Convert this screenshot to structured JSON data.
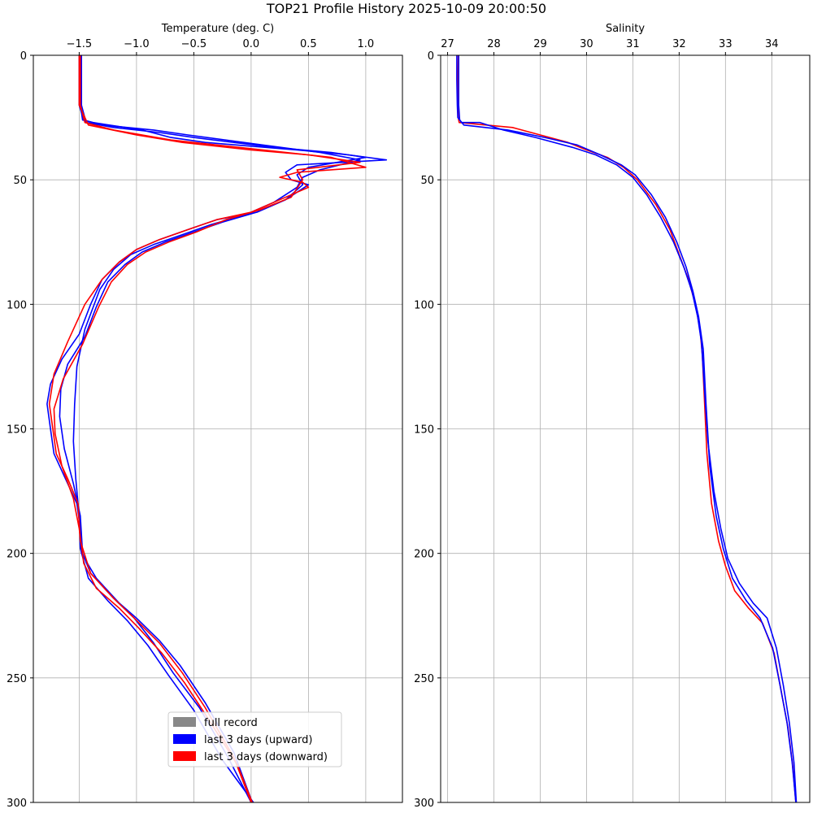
{
  "figure": {
    "title": "TOP21 Profile History 2025-10-09 20:00:50"
  },
  "chart_data": [
    {
      "type": "line",
      "xlabel": "Temperature (deg. C)",
      "ylabel": "",
      "xlim": [
        -1.9,
        1.32
      ],
      "ylim": [
        300,
        0
      ],
      "x_axis_position": "top",
      "y_inverted": true,
      "grid": true,
      "xticks": [
        -1.5,
        -1.0,
        -0.5,
        0.0,
        0.5,
        1.0
      ],
      "xtick_labels": [
        "−1.5",
        "−1.0",
        "−0.5",
        "0.0",
        "0.5",
        "1.0"
      ],
      "yticks": [
        0,
        50,
        100,
        150,
        200,
        250,
        300
      ],
      "ytick_labels": [
        "0",
        "50",
        "100",
        "150",
        "200",
        "250",
        "300"
      ],
      "legend": {
        "placement": "lower-center",
        "entries": [
          {
            "label": "full record",
            "color": "#888888"
          },
          {
            "label": "last 3 days (upward)",
            "color": "#0000ff"
          },
          {
            "label": "last 3 days (downward)",
            "color": "#ff0000"
          }
        ]
      },
      "series": [
        {
          "color": "#0000ff",
          "x": [
            -1.49,
            -1.49,
            -1.49,
            -1.47,
            -1.38,
            -0.95,
            -0.7,
            -0.4,
            0.4,
            0.85,
            1.18,
            0.4,
            0.3,
            0.35,
            0.5,
            0.3,
            0.05,
            -0.3,
            -0.55,
            -0.8,
            -1.0,
            -1.15,
            -1.3,
            -1.4,
            -1.5,
            -1.65,
            -1.75,
            -1.78,
            -1.75,
            -1.72,
            -1.62,
            -1.52,
            -1.49,
            -1.48,
            -1.35,
            -1.15,
            -1.0,
            -0.8,
            -0.62,
            -0.4,
            -0.15,
            0.01
          ],
          "y": [
            0,
            10,
            20,
            26,
            27,
            30,
            33,
            35,
            38,
            40,
            42,
            44,
            47,
            50,
            52,
            58,
            63,
            66,
            70,
            74,
            78,
            83,
            90,
            100,
            112,
            122,
            132,
            140,
            150,
            160,
            170,
            180,
            190,
            200,
            210,
            220,
            226,
            235,
            245,
            260,
            280,
            300
          ]
        },
        {
          "color": "#0000ff",
          "x": [
            -1.48,
            -1.48,
            -1.48,
            -1.44,
            -1.2,
            -0.8,
            -0.5,
            0.2,
            0.7,
            1.0,
            0.5,
            0.4,
            0.45,
            0.3,
            0.05,
            -0.25,
            -0.5,
            -0.75,
            -0.95,
            -1.1,
            -1.25,
            -1.35,
            -1.45,
            -1.6,
            -1.66,
            -1.67,
            -1.63,
            -1.55,
            -1.49,
            -1.47,
            -1.4,
            -1.2,
            -1.02,
            -0.85,
            -0.68,
            -0.45,
            -0.2,
            0.0
          ],
          "y": [
            0,
            10,
            20,
            27,
            29,
            31,
            33,
            37,
            39,
            41,
            45,
            48,
            52,
            58,
            63,
            67,
            71,
            75,
            79,
            84,
            91,
            101,
            113,
            124,
            134,
            145,
            158,
            172,
            185,
            200,
            208,
            218,
            226,
            236,
            248,
            262,
            282,
            300
          ]
        },
        {
          "color": "#0000ff",
          "x": [
            -1.5,
            -1.5,
            -1.5,
            -1.46,
            -1.3,
            -0.85,
            -0.55,
            0.1,
            0.6,
            0.95,
            0.6,
            0.45,
            0.4,
            0.2,
            -0.05,
            -0.35,
            -0.6,
            -0.85,
            -1.05,
            -1.2,
            -1.32,
            -1.45,
            -1.52,
            -1.54,
            -1.55,
            -1.53,
            -1.5,
            -1.49,
            -1.42,
            -1.25,
            -1.08,
            -0.9,
            -0.72,
            -0.5,
            -0.25,
            0.02
          ],
          "y": [
            0,
            10,
            20,
            26,
            28,
            30,
            32,
            36,
            39,
            42,
            46,
            49,
            53,
            59,
            64,
            68,
            72,
            76,
            80,
            86,
            94,
            110,
            125,
            140,
            155,
            170,
            185,
            198,
            210,
            219,
            227,
            237,
            249,
            263,
            283,
            300
          ]
        },
        {
          "color": "#ff0000",
          "x": [
            -1.49,
            -1.49,
            -1.49,
            -1.45,
            -1.2,
            -0.95,
            -0.7,
            -0.3,
            0.1,
            0.7,
            1.0,
            0.4,
            0.25,
            0.45,
            0.5,
            0.25,
            0.0,
            -0.3,
            -0.55,
            -0.8,
            -1.0,
            -1.15,
            -1.3,
            -1.45,
            -1.6,
            -1.72,
            -1.76,
            -1.73,
            -1.7,
            -1.6,
            -1.51,
            -1.49,
            -1.4,
            -1.2,
            -1.02,
            -0.8,
            -0.6,
            -0.4,
            -0.15,
            0.0
          ],
          "y": [
            0,
            10,
            20,
            27,
            30,
            32,
            34,
            36,
            38,
            41,
            45,
            47,
            49,
            51,
            53,
            58,
            63,
            66,
            70,
            74,
            78,
            83,
            90,
            100,
            115,
            128,
            140,
            150,
            160,
            170,
            180,
            195,
            208,
            218,
            226,
            236,
            248,
            262,
            282,
            300
          ]
        },
        {
          "color": "#ff0000",
          "x": [
            -1.5,
            -1.5,
            -1.5,
            -1.42,
            -1.0,
            -0.6,
            0.0,
            0.5,
            0.95,
            0.4,
            0.45,
            0.35,
            0.08,
            -0.22,
            -0.48,
            -0.72,
            -0.92,
            -1.08,
            -1.22,
            -1.33,
            -1.47,
            -1.64,
            -1.72,
            -1.71,
            -1.65,
            -1.55,
            -1.5,
            -1.46,
            -1.35,
            -1.15,
            -0.98,
            -0.78,
            -0.58,
            -0.38,
            -0.12,
            0.01
          ],
          "y": [
            0,
            10,
            20,
            28,
            32,
            35,
            38,
            40,
            43,
            46,
            50,
            57,
            62,
            66,
            71,
            75,
            79,
            84,
            91,
            101,
            116,
            130,
            142,
            152,
            165,
            178,
            190,
            204,
            214,
            222,
            230,
            240,
            252,
            266,
            285,
            300
          ]
        }
      ]
    },
    {
      "type": "line",
      "xlabel": "Salinity",
      "ylabel": "",
      "xlim": [
        26.85,
        34.82
      ],
      "ylim": [
        300,
        0
      ],
      "x_axis_position": "top",
      "y_inverted": true,
      "grid": true,
      "xticks": [
        27,
        28,
        29,
        30,
        31,
        32,
        33,
        34
      ],
      "xtick_labels": [
        "27",
        "28",
        "29",
        "30",
        "31",
        "32",
        "33",
        "34"
      ],
      "yticks": [
        0,
        50,
        100,
        150,
        200,
        250,
        300
      ],
      "ytick_labels": [
        "0",
        "50",
        "100",
        "150",
        "200",
        "250",
        "300"
      ],
      "series": [
        {
          "color": "#ff0000",
          "x": [
            27.23,
            27.22,
            27.22,
            27.23,
            27.25,
            28.4,
            29.0,
            29.6,
            30.0,
            30.45,
            30.8,
            31.1,
            31.5,
            31.8,
            32.0,
            32.2,
            32.35,
            32.45,
            32.5,
            32.55,
            32.6,
            32.7,
            32.85,
            33.0,
            33.2,
            33.5,
            33.8,
            34.05,
            34.2,
            34.35,
            34.45,
            34.52
          ],
          "y": [
            0,
            10,
            20,
            25,
            27,
            29,
            32,
            35,
            38,
            41,
            45,
            50,
            60,
            70,
            80,
            90,
            100,
            110,
            120,
            140,
            160,
            180,
            195,
            205,
            215,
            222,
            228,
            240,
            255,
            270,
            285,
            300
          ]
        },
        {
          "color": "#0000ff",
          "x": [
            27.24,
            27.24,
            27.24,
            27.26,
            27.3,
            27.7,
            28.2,
            28.9,
            29.7,
            30.2,
            30.65,
            31.0,
            31.3,
            31.6,
            31.88,
            32.1,
            32.28,
            32.4,
            32.48,
            32.55,
            32.62,
            32.75,
            32.9,
            33.05,
            33.3,
            33.6,
            33.9,
            34.1,
            34.25,
            34.38,
            34.48,
            34.53
          ],
          "y": [
            0,
            10,
            20,
            26,
            27,
            27,
            30,
            33,
            37,
            40,
            44,
            49,
            56,
            65,
            75,
            85,
            95,
            105,
            115,
            135,
            155,
            175,
            190,
            202,
            212,
            220,
            226,
            238,
            253,
            268,
            284,
            300
          ]
        },
        {
          "color": "#0000ff",
          "x": [
            27.2,
            27.2,
            27.21,
            27.22,
            27.35,
            28.3,
            29.1,
            29.8,
            30.3,
            30.75,
            31.05,
            31.4,
            31.7,
            31.95,
            32.15,
            32.3,
            32.42,
            32.52,
            32.58,
            32.66,
            32.8,
            32.95,
            33.15,
            33.45,
            33.75,
            34.02,
            34.18,
            34.33,
            34.44,
            34.52
          ],
          "y": [
            0,
            10,
            20,
            25,
            28,
            30,
            33,
            36,
            40,
            44,
            48,
            56,
            65,
            75,
            85,
            95,
            105,
            118,
            140,
            165,
            185,
            198,
            210,
            219,
            226,
            238,
            253,
            268,
            284,
            300
          ]
        }
      ]
    }
  ]
}
